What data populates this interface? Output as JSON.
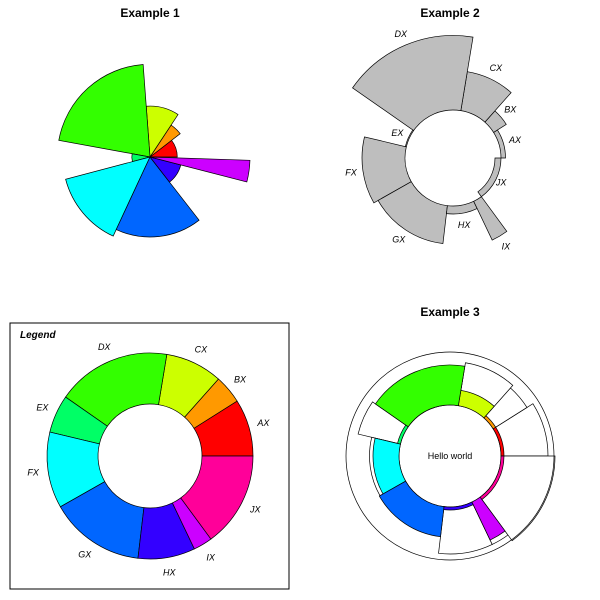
{
  "chart_data": [
    {
      "type": "pie",
      "subtype": "rose (sector radius proportional to value)",
      "title": "Example 1",
      "categories": [
        "AX",
        "BX",
        "CX",
        "DX",
        "EX",
        "FX",
        "GX",
        "HX",
        "IX",
        "JX"
      ],
      "values": [
        3.0,
        4.2,
        5.6,
        10.2,
        2.0,
        9.6,
        8.8,
        3.5,
        11.0,
        0.7
      ],
      "widths": [
        6,
        3,
        6,
        12,
        4,
        8,
        10,
        6,
        2,
        0.3
      ],
      "colors": [
        "#FF0000",
        "#FF9900",
        "#CCFF00",
        "#33FF00",
        "#00FF66",
        "#00FFFF",
        "#0066FF",
        "#3300FF",
        "#CC00FF",
        "#FF0099"
      ],
      "labels_shown": false
    },
    {
      "type": "pie",
      "subtype": "ring (inner hole, outer radius proportional to value)",
      "title": "Example 2",
      "categories": [
        "AX",
        "BX",
        "CX",
        "DX",
        "EX",
        "FX",
        "GX",
        "HX",
        "IX",
        "JX"
      ],
      "values": [
        7.5,
        9.0,
        12.5,
        17.5,
        7.0,
        13.0,
        12.3,
        8.0,
        13.0,
        6.0
      ],
      "widths": [
        6,
        3,
        6,
        12,
        4,
        8,
        10,
        6,
        2,
        10
      ],
      "fill": "#BEBEBE"
    },
    {
      "type": "pie",
      "subtype": "donut with legend box",
      "title": "",
      "legend_title": "Legend",
      "categories": [
        "AX",
        "BX",
        "CX",
        "DX",
        "EX",
        "FX",
        "GX",
        "HX",
        "IX",
        "JX"
      ],
      "widths": [
        6,
        3,
        6,
        12,
        4,
        8,
        10,
        6,
        2,
        10
      ],
      "colors": [
        "#FF0000",
        "#FF9900",
        "#CCFF00",
        "#33FF00",
        "#00FF66",
        "#00FFFF",
        "#0066FF",
        "#3300FF",
        "#CC00FF",
        "#FF0099"
      ]
    },
    {
      "type": "pie",
      "subtype": "rose inside ring with outer reference ring",
      "title": "Example 3",
      "center_text": "Hello world",
      "categories": [
        "AX",
        "BX",
        "CX",
        "DX",
        "EX",
        "FX",
        "GX",
        "HX",
        "IX",
        "JX"
      ],
      "values": [
        6.0,
        7.2,
        9.5,
        13.0,
        4.0,
        11.0,
        11.6,
        7.2,
        13.3,
        1.8
      ],
      "outer_values": [
        14,
        13,
        13.5,
        11.5,
        13.5,
        11.5,
        11.5,
        14,
        14,
        15
      ],
      "widths": [
        6,
        3,
        6,
        12,
        4,
        8,
        10,
        6,
        2,
        10
      ],
      "colors": [
        "#FF0000",
        "#FF9900",
        "#CCFF00",
        "#33FF00",
        "#00FF66",
        "#00FFFF",
        "#0066FF",
        "#3300FF",
        "#CC00FF",
        "#FF0099"
      ]
    }
  ]
}
